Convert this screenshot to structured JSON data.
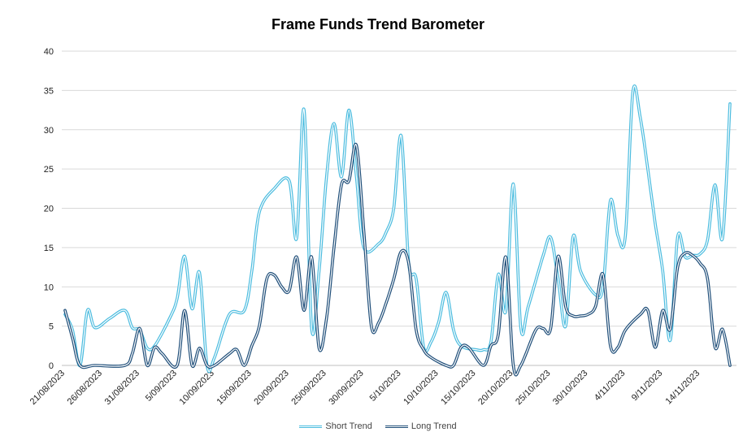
{
  "chart_data": {
    "type": "line",
    "title": "Frame Funds Trend Barometer",
    "ylim": [
      0,
      40
    ],
    "yticks": [
      0,
      5,
      10,
      15,
      20,
      25,
      30,
      35,
      40
    ],
    "grid": true,
    "legend_position": "bottom",
    "xtick_labels": [
      "21/08/2023",
      "26/08/2023",
      "31/08/2023",
      "5/09/2023",
      "10/09/2023",
      "15/09/2023",
      "20/09/2023",
      "25/09/2023",
      "30/09/2023",
      "5/10/2023",
      "10/10/2023",
      "15/10/2023",
      "20/10/2023",
      "25/10/2023",
      "30/10/2023",
      "4/11/2023",
      "9/11/2023",
      "14/11/2023"
    ],
    "series": [
      {
        "name": "Short Trend",
        "color": "#4bbcdf",
        "points": [
          [
            "21/08/2023",
            6.5
          ],
          [
            "22/08/2023",
            4.5
          ],
          [
            "23/08/2023",
            0.0
          ],
          [
            "24/08/2023",
            7.0
          ],
          [
            "25/08/2023",
            4.8
          ],
          [
            "27/08/2023",
            6.0
          ],
          [
            "29/08/2023",
            7.0
          ],
          [
            "30/08/2023",
            4.8
          ],
          [
            "31/08/2023",
            4.5
          ],
          [
            "1/09/2023",
            2.2
          ],
          [
            "2/09/2023",
            2.5
          ],
          [
            "4/09/2023",
            6.0
          ],
          [
            "5/09/2023",
            8.5
          ],
          [
            "6/09/2023",
            13.9
          ],
          [
            "7/09/2023",
            7.2
          ],
          [
            "8/09/2023",
            11.8
          ],
          [
            "9/09/2023",
            0.0
          ],
          [
            "10/09/2023",
            1.0
          ],
          [
            "12/09/2023",
            6.5
          ],
          [
            "14/09/2023",
            7.0
          ],
          [
            "15/09/2023",
            12.0
          ],
          [
            "16/09/2023",
            19.5
          ],
          [
            "18/09/2023",
            22.5
          ],
          [
            "20/09/2023",
            23.5
          ],
          [
            "21/09/2023",
            16.2
          ],
          [
            "22/09/2023",
            32.5
          ],
          [
            "23/09/2023",
            4.8
          ],
          [
            "24/09/2023",
            12.0
          ],
          [
            "25/09/2023",
            24.0
          ],
          [
            "26/09/2023",
            30.8
          ],
          [
            "27/09/2023",
            24.0
          ],
          [
            "28/09/2023",
            32.5
          ],
          [
            "29/09/2023",
            24.0
          ],
          [
            "30/09/2023",
            15.0
          ],
          [
            "2/10/2023",
            15.5
          ],
          [
            "3/10/2023",
            17.0
          ],
          [
            "4/10/2023",
            20.0
          ],
          [
            "5/10/2023",
            29.2
          ],
          [
            "6/10/2023",
            13.0
          ],
          [
            "7/10/2023",
            11.0
          ],
          [
            "8/10/2023",
            2.3
          ],
          [
            "9/10/2023",
            3.0
          ],
          [
            "10/10/2023",
            5.5
          ],
          [
            "11/10/2023",
            9.3
          ],
          [
            "12/10/2023",
            4.5
          ],
          [
            "13/10/2023",
            2.5
          ],
          [
            "15/10/2023",
            2.0
          ],
          [
            "16/10/2023",
            2.0
          ],
          [
            "17/10/2023",
            3.0
          ],
          [
            "18/10/2023",
            11.6
          ],
          [
            "19/10/2023",
            7.0
          ],
          [
            "20/10/2023",
            23.1
          ],
          [
            "21/10/2023",
            4.8
          ],
          [
            "22/10/2023",
            7.5
          ],
          [
            "24/10/2023",
            14.0
          ],
          [
            "25/10/2023",
            16.3
          ],
          [
            "26/10/2023",
            11.0
          ],
          [
            "27/10/2023",
            5.0
          ],
          [
            "28/10/2023",
            16.4
          ],
          [
            "29/10/2023",
            12.0
          ],
          [
            "31/10/2023",
            9.0
          ],
          [
            "1/11/2023",
            10.0
          ],
          [
            "2/11/2023",
            21.0
          ],
          [
            "3/11/2023",
            16.5
          ],
          [
            "4/11/2023",
            16.5
          ],
          [
            "5/11/2023",
            34.8
          ],
          [
            "6/11/2023",
            31.5
          ],
          [
            "7/11/2023",
            25.0
          ],
          [
            "8/11/2023",
            18.0
          ],
          [
            "9/11/2023",
            12.0
          ],
          [
            "10/11/2023",
            3.2
          ],
          [
            "11/11/2023",
            16.4
          ],
          [
            "12/11/2023",
            13.8
          ],
          [
            "13/11/2023",
            14.0
          ],
          [
            "14/11/2023",
            14.2
          ],
          [
            "15/11/2023",
            16.0
          ],
          [
            "16/11/2023",
            23.0
          ],
          [
            "17/11/2023",
            16.2
          ],
          [
            "18/11/2023",
            33.3
          ]
        ]
      },
      {
        "name": "Long Trend",
        "color": "#1f4e79",
        "points": [
          [
            "21/08/2023",
            7.0
          ],
          [
            "22/08/2023",
            3.5
          ],
          [
            "23/08/2023",
            0.0
          ],
          [
            "25/08/2023",
            0.0
          ],
          [
            "29/08/2023",
            0.0
          ],
          [
            "30/08/2023",
            1.5
          ],
          [
            "31/08/2023",
            4.7
          ],
          [
            "1/09/2023",
            0.0
          ],
          [
            "2/09/2023",
            2.3
          ],
          [
            "3/09/2023",
            1.5
          ],
          [
            "5/09/2023",
            0.0
          ],
          [
            "6/09/2023",
            7.0
          ],
          [
            "7/09/2023",
            0.0
          ],
          [
            "8/09/2023",
            2.2
          ],
          [
            "9/09/2023",
            0.0
          ],
          [
            "10/09/2023",
            0.0
          ],
          [
            "12/09/2023",
            1.5
          ],
          [
            "13/09/2023",
            2.0
          ],
          [
            "14/09/2023",
            0.0
          ],
          [
            "15/09/2023",
            2.5
          ],
          [
            "16/09/2023",
            5.0
          ],
          [
            "17/09/2023",
            11.0
          ],
          [
            "18/09/2023",
            11.5
          ],
          [
            "19/09/2023",
            10.0
          ],
          [
            "20/09/2023",
            9.5
          ],
          [
            "21/09/2023",
            13.8
          ],
          [
            "22/09/2023",
            7.0
          ],
          [
            "23/09/2023",
            13.8
          ],
          [
            "24/09/2023",
            2.2
          ],
          [
            "25/09/2023",
            6.0
          ],
          [
            "26/09/2023",
            15.0
          ],
          [
            "27/09/2023",
            23.0
          ],
          [
            "28/09/2023",
            23.5
          ],
          [
            "29/09/2023",
            28.0
          ],
          [
            "30/09/2023",
            17.0
          ],
          [
            "1/10/2023",
            5.0
          ],
          [
            "2/10/2023",
            5.5
          ],
          [
            "3/10/2023",
            8.0
          ],
          [
            "4/10/2023",
            11.0
          ],
          [
            "5/10/2023",
            14.5
          ],
          [
            "6/10/2023",
            13.0
          ],
          [
            "7/10/2023",
            4.5
          ],
          [
            "8/10/2023",
            2.0
          ],
          [
            "9/10/2023",
            1.0
          ],
          [
            "11/10/2023",
            0.0
          ],
          [
            "12/10/2023",
            0.0
          ],
          [
            "13/10/2023",
            2.3
          ],
          [
            "14/10/2023",
            2.3
          ],
          [
            "16/10/2023",
            0.0
          ],
          [
            "17/10/2023",
            2.5
          ],
          [
            "18/10/2023",
            4.0
          ],
          [
            "19/10/2023",
            13.8
          ],
          [
            "20/10/2023",
            0.0
          ],
          [
            "21/10/2023",
            0.0
          ],
          [
            "23/10/2023",
            4.5
          ],
          [
            "24/10/2023",
            4.7
          ],
          [
            "25/10/2023",
            4.7
          ],
          [
            "26/10/2023",
            13.9
          ],
          [
            "27/10/2023",
            7.5
          ],
          [
            "28/10/2023",
            6.3
          ],
          [
            "29/10/2023",
            6.3
          ],
          [
            "30/10/2023",
            6.5
          ],
          [
            "31/10/2023",
            7.5
          ],
          [
            "1/11/2023",
            11.6
          ],
          [
            "2/11/2023",
            2.5
          ],
          [
            "3/11/2023",
            2.3
          ],
          [
            "4/11/2023",
            4.5
          ],
          [
            "6/11/2023",
            6.5
          ],
          [
            "7/11/2023",
            7.0
          ],
          [
            "8/11/2023",
            2.3
          ],
          [
            "9/11/2023",
            7.0
          ],
          [
            "10/11/2023",
            4.6
          ],
          [
            "11/11/2023",
            12.5
          ],
          [
            "12/11/2023",
            14.3
          ],
          [
            "13/11/2023",
            14.0
          ],
          [
            "14/11/2023",
            13.0
          ],
          [
            "15/11/2023",
            11.0
          ],
          [
            "16/11/2023",
            2.3
          ],
          [
            "17/11/2023",
            4.6
          ],
          [
            "18/11/2023",
            0.0
          ]
        ]
      }
    ]
  }
}
